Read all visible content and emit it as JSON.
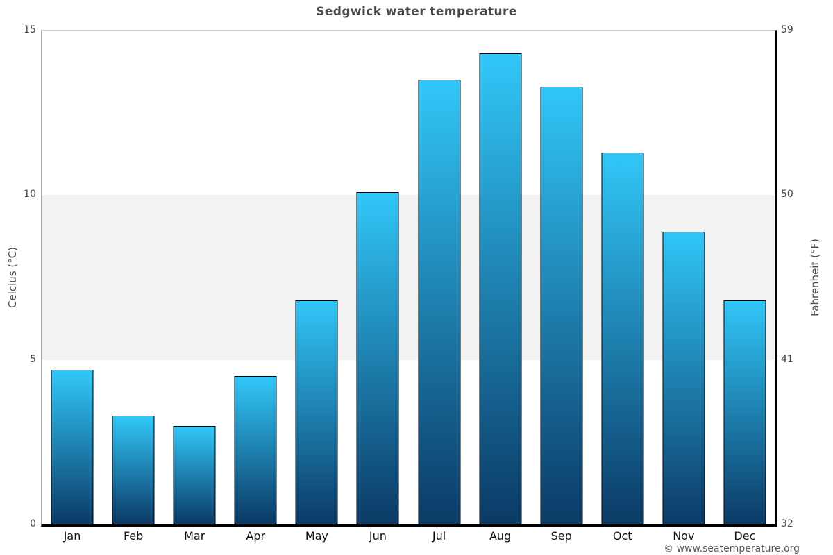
{
  "page": {
    "title": "Sedgwick water temperature",
    "footer_copyright": "© www.seatemperature.org"
  },
  "chart_data": {
    "type": "bar",
    "title": "Sedgwick water temperature",
    "categories": [
      "Jan",
      "Feb",
      "Mar",
      "Apr",
      "May",
      "Jun",
      "Jul",
      "Aug",
      "Sep",
      "Oct",
      "Nov",
      "Dec"
    ],
    "values": [
      4.7,
      3.3,
      3.0,
      4.5,
      6.8,
      10.1,
      13.5,
      14.3,
      13.3,
      11.3,
      8.9,
      6.8
    ],
    "ylabel_left": "Celcius (°C)",
    "ylabel_right": "Fahrenheit (°F)",
    "ylim": [
      0,
      15
    ],
    "yticks_left": [
      15,
      10,
      5,
      0
    ],
    "yticks_right": [
      59,
      50,
      41,
      32
    ],
    "shaded_band_celsius": [
      5,
      10
    ],
    "grid": "band",
    "legend_position": "none"
  },
  "style": {
    "bar_gradient_top": "#31c7f8",
    "bar_gradient_bottom": "#0b3a66",
    "bar_border": "#000000",
    "band_color": "#f2f2f2",
    "title_color": "#4a4a4a",
    "tick_color": "#444444",
    "month_label_color": "#111111",
    "axis_title_color": "#4d4d4d",
    "footer_color": "#555555"
  }
}
